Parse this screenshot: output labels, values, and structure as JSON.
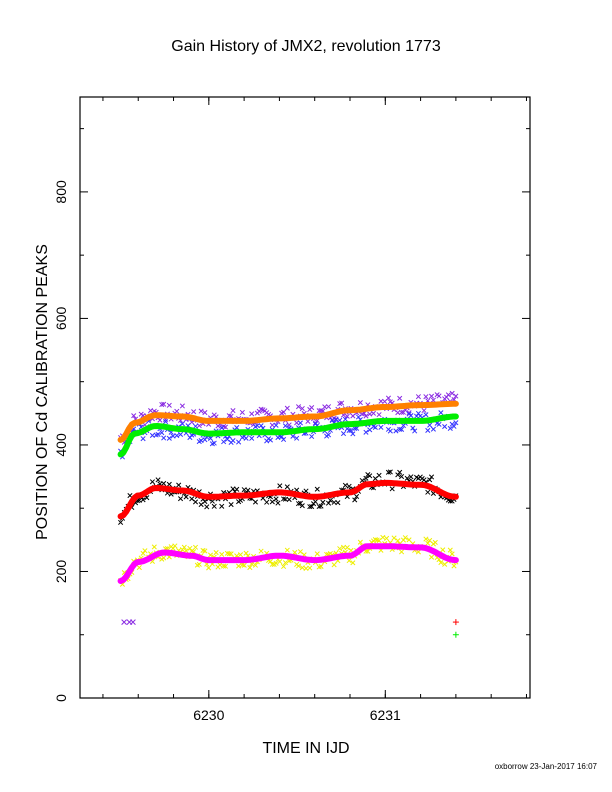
{
  "page": {
    "title": "Gain History of JMX2, revolution 1773",
    "footer": "oxborrow 23-Jan-2017 16:07"
  },
  "chart_data": {
    "type": "scatter",
    "title": "Gain History of JMX2, revolution 1773",
    "xlabel": "TIME IN IJD",
    "ylabel": "POSITION OF Cd CALIBRATION PEAKS",
    "xlim": [
      6229.27,
      6231.82
    ],
    "ylim": [
      0,
      950
    ],
    "x_ticks": [
      6230,
      6231
    ],
    "y_ticks": [
      0,
      200,
      400,
      600,
      800
    ],
    "grid": false,
    "legend": "none",
    "colors": {
      "orange_fit": "#ff8000",
      "purple_points": "#8a2be2",
      "green_fit": "#00ee00",
      "blue_points": "#3333ff",
      "red_fit": "#ff0000",
      "black_points": "#000000",
      "magenta_fit": "#ff00ff",
      "yellow_points": "#eeee00"
    },
    "series": [
      {
        "kind": "fit",
        "color": "#ff8000",
        "x": [
          6229.5,
          6229.58,
          6229.7,
          6229.85,
          6230.0,
          6230.2,
          6230.4,
          6230.6,
          6230.8,
          6231.0,
          6231.2,
          6231.4
        ],
        "y": [
          408,
          435,
          447,
          445,
          438,
          438,
          442,
          445,
          455,
          460,
          463,
          465
        ]
      },
      {
        "kind": "fit",
        "color": "#00ee00",
        "x": [
          6229.5,
          6229.58,
          6229.7,
          6229.85,
          6230.0,
          6230.2,
          6230.4,
          6230.6,
          6230.8,
          6231.0,
          6231.2,
          6231.4
        ],
        "y": [
          385,
          418,
          430,
          425,
          418,
          420,
          420,
          425,
          433,
          438,
          438,
          445
        ]
      },
      {
        "kind": "fit",
        "color": "#ff0000",
        "x": [
          6229.5,
          6229.6,
          6229.7,
          6229.85,
          6230.0,
          6230.2,
          6230.4,
          6230.6,
          6230.8,
          6230.9,
          6231.0,
          6231.2,
          6231.4
        ],
        "y": [
          287,
          320,
          332,
          328,
          318,
          320,
          325,
          318,
          325,
          338,
          340,
          337,
          318
        ]
      },
      {
        "kind": "fit",
        "color": "#ff00ff",
        "x": [
          6229.5,
          6229.6,
          6229.75,
          6229.9,
          6230.0,
          6230.2,
          6230.4,
          6230.6,
          6230.8,
          6230.9,
          6231.0,
          6231.2,
          6231.4
        ],
        "y": [
          185,
          215,
          230,
          225,
          218,
          218,
          225,
          218,
          225,
          240,
          240,
          238,
          218
        ]
      },
      {
        "kind": "points",
        "color": "#8a2be2",
        "x": [
          6229.5,
          6229.6,
          6229.7,
          6229.85,
          6230.0,
          6230.2,
          6230.4,
          6230.6,
          6230.8,
          6231.0,
          6231.2,
          6231.4
        ],
        "y": [
          412,
          440,
          452,
          448,
          440,
          442,
          445,
          448,
          458,
          462,
          465,
          468
        ]
      },
      {
        "kind": "points",
        "color": "#3333ff",
        "x": [
          6229.5,
          6229.6,
          6229.7,
          6229.85,
          6230.0,
          6230.2,
          6230.4,
          6230.6,
          6230.8,
          6231.0,
          6231.2,
          6231.4
        ],
        "y": [
          392,
          422,
          425,
          422,
          415,
          418,
          418,
          424,
          430,
          436,
          436,
          440
        ]
      },
      {
        "kind": "points",
        "color": "#000000",
        "x": [
          6229.5,
          6229.6,
          6229.7,
          6229.85,
          6230.0,
          6230.2,
          6230.4,
          6230.6,
          6230.8,
          6230.9,
          6231.0,
          6231.2,
          6231.4
        ],
        "y": [
          290,
          322,
          334,
          326,
          316,
          318,
          322,
          316,
          324,
          340,
          345,
          340,
          320
        ]
      },
      {
        "kind": "points",
        "color": "#eeee00",
        "x": [
          6229.5,
          6229.6,
          6229.75,
          6229.9,
          6230.0,
          6230.2,
          6230.4,
          6230.6,
          6230.8,
          6230.9,
          6231.0,
          6231.2,
          6231.4
        ],
        "y": [
          190,
          218,
          232,
          226,
          218,
          220,
          222,
          216,
          226,
          242,
          244,
          240,
          220
        ]
      },
      {
        "kind": "markers",
        "color": "#8a2be2",
        "x": [
          6229.52,
          6229.55,
          6229.57
        ],
        "y": [
          120,
          120,
          120
        ]
      },
      {
        "kind": "markers",
        "color": "#ff0000",
        "x": [
          6231.4
        ],
        "y": [
          120
        ]
      },
      {
        "kind": "markers",
        "color": "#00ee00",
        "x": [
          6231.4
        ],
        "y": [
          100
        ]
      }
    ]
  }
}
